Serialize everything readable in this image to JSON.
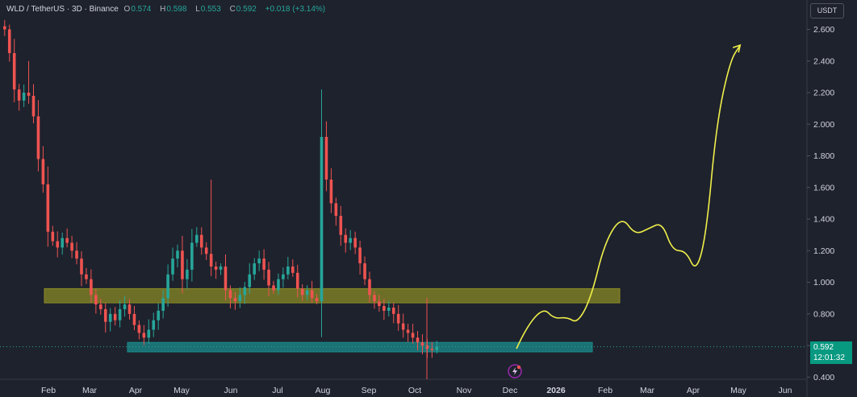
{
  "header": {
    "symbol": "WLD / TetherUS · 3D · Binance",
    "open_label": "O",
    "open": "0.574",
    "high_label": "H",
    "high": "0.598",
    "low_label": "L",
    "low": "0.553",
    "close_label": "C",
    "close": "0.592",
    "change": "+0.018 (+3.14%)"
  },
  "axis_unit": "USDT",
  "last_price": {
    "value": "0.592",
    "countdown": "12:01:32"
  },
  "colors": {
    "background": "#1e222d",
    "up": "#26a69a",
    "down": "#ef5350",
    "resistance_zone": "#8a8a25",
    "support_zone": "#1b8c8c",
    "projection": "#f0f04a"
  },
  "icons": [
    "lightning-event-icon"
  ],
  "chart_data": {
    "type": "candlestick",
    "title": "",
    "xlabel": "",
    "ylabel": "",
    "ylim": [
      0.4,
      2.7
    ],
    "y_ticks": [
      "2.600",
      "2.400",
      "2.200",
      "2.000",
      "1.800",
      "1.600",
      "1.400",
      "1.200",
      "1.000",
      "0.800",
      "0.600",
      "0.400"
    ],
    "x_ticks": [
      "Feb",
      "Mar",
      "Apr",
      "May",
      "Jun",
      "Jul",
      "Aug",
      "Sep",
      "Oct",
      "Nov",
      "Dec",
      "2026",
      "Feb",
      "Mar",
      "Apr",
      "May",
      "Jun"
    ],
    "grid": false,
    "candles_close": [
      2.6,
      2.45,
      2.22,
      2.15,
      2.2,
      2.18,
      2.05,
      1.78,
      1.62,
      1.32,
      1.26,
      1.22,
      1.28,
      1.25,
      1.2,
      1.15,
      1.05,
      1.02,
      0.92,
      0.86,
      0.83,
      0.75,
      0.8,
      0.76,
      0.83,
      0.86,
      0.8,
      0.73,
      0.68,
      0.65,
      0.7,
      0.76,
      0.82,
      0.9,
      1.05,
      1.15,
      1.2,
      1.02,
      1.08,
      1.25,
      1.3,
      1.22,
      1.18,
      1.1,
      1.08,
      1.1,
      0.95,
      0.9,
      0.88,
      0.92,
      0.97,
      1.05,
      1.12,
      1.15,
      1.08,
      0.98,
      0.95,
      1.02,
      1.05,
      1.1,
      1.06,
      0.96,
      0.92,
      0.95,
      0.9,
      0.88,
      1.92,
      1.65,
      1.5,
      1.42,
      1.3,
      1.25,
      1.28,
      1.22,
      1.12,
      1.02,
      0.92,
      0.88,
      0.85,
      0.82,
      0.84,
      0.8,
      0.74,
      0.7,
      0.68,
      0.65,
      0.62,
      0.6,
      0.58,
      0.572,
      0.592
    ],
    "zones": [
      {
        "name": "resistance-zone",
        "from": 0.87,
        "to": 0.96
      },
      {
        "name": "support-zone",
        "from": 0.56,
        "to": 0.62
      }
    ],
    "projection": [
      [
        0,
        0.58
      ],
      [
        3,
        0.72
      ],
      [
        8,
        0.84
      ],
      [
        11,
        0.77
      ],
      [
        15,
        0.78
      ],
      [
        18,
        0.74
      ],
      [
        22,
        0.9
      ],
      [
        26,
        1.25
      ],
      [
        31,
        1.42
      ],
      [
        35,
        1.3
      ],
      [
        39,
        1.34
      ],
      [
        43,
        1.38
      ],
      [
        46,
        1.2
      ],
      [
        50,
        1.2
      ],
      [
        53,
        1.06
      ],
      [
        56,
        1.3
      ],
      [
        59,
        2.0
      ],
      [
        63,
        2.4
      ],
      [
        66,
        2.5
      ]
    ]
  }
}
